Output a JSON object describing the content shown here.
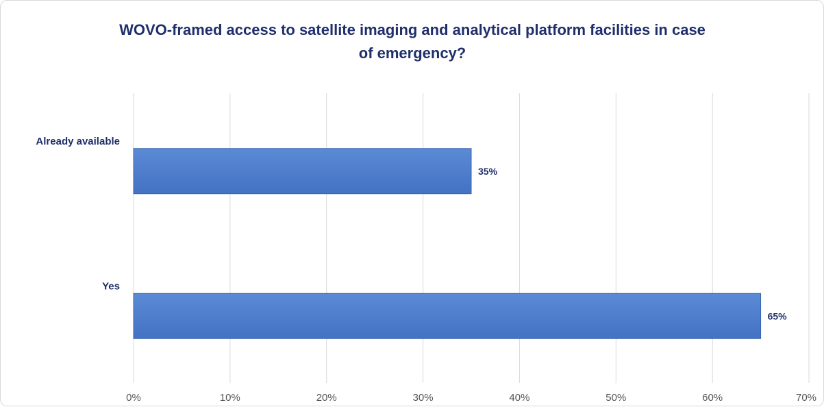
{
  "chart_data": {
    "type": "bar",
    "orientation": "horizontal",
    "title_lines": [
      "WOVO-framed access to satellite imaging and analytical platform facilities in case",
      "of emergency?"
    ],
    "categories": [
      "Already available",
      "Yes"
    ],
    "values": [
      35,
      65
    ],
    "data_labels": [
      "35%",
      "65%"
    ],
    "xlim": [
      0,
      70
    ],
    "xticks": [
      0,
      10,
      20,
      30,
      40,
      50,
      60,
      70
    ],
    "xtick_labels": [
      "0%",
      "10%",
      "20%",
      "30%",
      "40%",
      "50%",
      "60%",
      "70%"
    ],
    "grid": true,
    "legend": "none",
    "colors": {
      "bar": "#4472c4",
      "bar_light": "#5b8ad6",
      "title": "#1f2f6b",
      "grid": "#d9d9d9"
    }
  }
}
